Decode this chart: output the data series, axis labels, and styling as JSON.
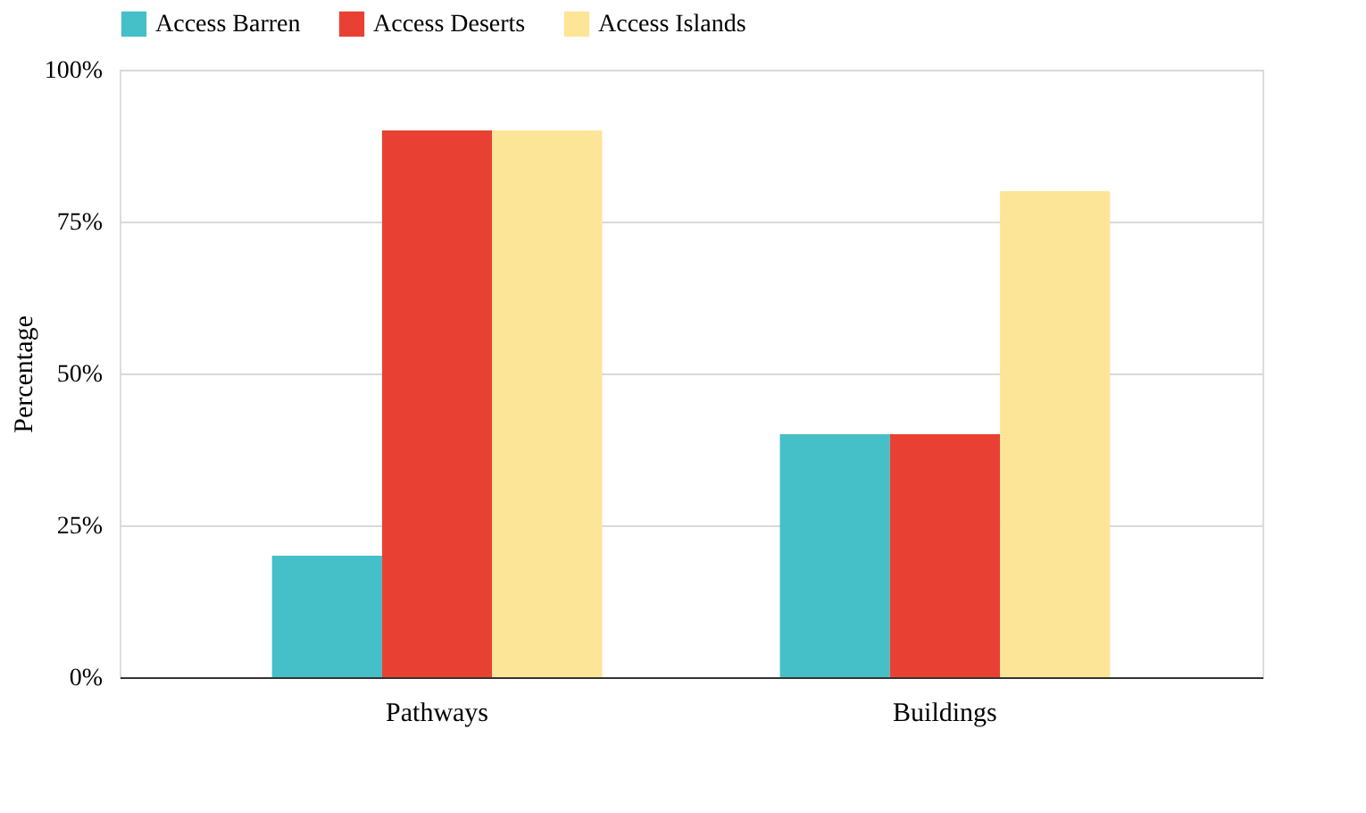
{
  "chart_data": {
    "type": "bar",
    "ylabel": "Percentage",
    "categories": [
      "Pathways",
      "Buildings"
    ],
    "series": [
      {
        "name": "Access Barren",
        "color": "#45bfc8",
        "values": [
          20,
          40
        ]
      },
      {
        "name": "Access Deserts",
        "color": "#e84134",
        "values": [
          90,
          40
        ]
      },
      {
        "name": "Access Islands",
        "color": "#fde598",
        "values": [
          90,
          80
        ]
      }
    ],
    "ylim": [
      0,
      100
    ],
    "yticks": [
      {
        "value": 0,
        "label": "0%"
      },
      {
        "value": 25,
        "label": "25%"
      },
      {
        "value": 50,
        "label": "50%"
      },
      {
        "value": 75,
        "label": "75%"
      },
      {
        "value": 100,
        "label": "100%"
      }
    ],
    "grid": "y",
    "legend": "top"
  }
}
